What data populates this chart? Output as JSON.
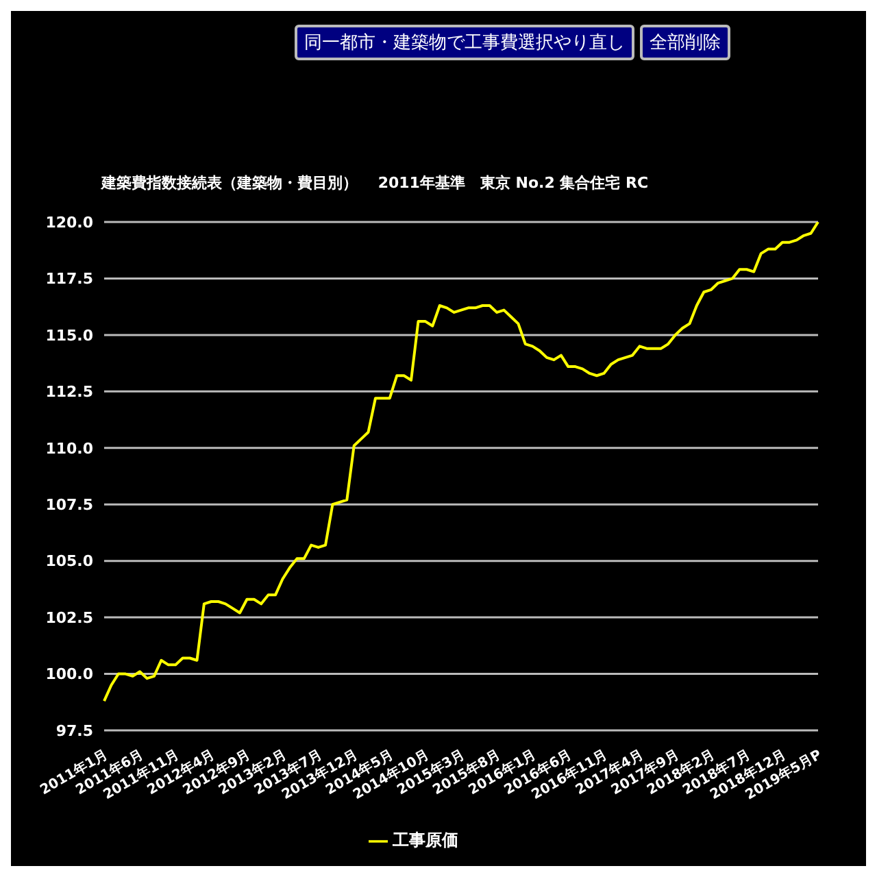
{
  "chart_data": {
    "type": "line",
    "title": "建築費指数接続表（建築物・費目別）　 2011年基準　東京 No.2 集合住宅 RC",
    "annotations": [
      "同一都市・建築物で工事費選択やり直し",
      "全部削除"
    ],
    "categories": [
      "2011年1月",
      null,
      null,
      null,
      null,
      "2011年6月",
      null,
      null,
      null,
      null,
      "2011年11月",
      null,
      null,
      null,
      null,
      "2012年4月",
      null,
      null,
      null,
      null,
      "2012年9月",
      null,
      null,
      null,
      null,
      "2013年2月",
      null,
      null,
      null,
      null,
      "2013年7月",
      null,
      null,
      null,
      null,
      "2013年12月",
      null,
      null,
      null,
      null,
      "2014年5月",
      null,
      null,
      null,
      null,
      "2014年10月",
      null,
      null,
      null,
      null,
      "2015年3月",
      null,
      null,
      null,
      null,
      "2015年8月",
      null,
      null,
      null,
      null,
      "2016年1月",
      null,
      null,
      null,
      null,
      "2016年6月",
      null,
      null,
      null,
      null,
      "2016年11月",
      null,
      null,
      null,
      null,
      "2017年4月",
      null,
      null,
      null,
      null,
      "2017年9月",
      null,
      null,
      null,
      null,
      "2018年2月",
      null,
      null,
      null,
      null,
      "2018年7月",
      null,
      null,
      null,
      null,
      "2018年12月",
      null,
      null,
      null,
      null,
      "2019年5月P"
    ],
    "series": [
      {
        "name": "工事原価",
        "color": "#ffff00",
        "values": [
          98.8,
          99.5,
          100.0,
          100.0,
          99.9,
          100.1,
          99.8,
          99.9,
          100.6,
          100.4,
          100.4,
          100.7,
          100.7,
          100.6,
          103.1,
          103.2,
          103.2,
          103.1,
          102.9,
          102.7,
          103.3,
          103.3,
          103.1,
          103.5,
          103.5,
          104.2,
          104.7,
          105.1,
          105.1,
          105.7,
          105.6,
          105.7,
          107.5,
          107.6,
          107.7,
          110.1,
          110.4,
          110.7,
          112.2,
          112.2,
          112.2,
          113.2,
          113.2,
          113.0,
          115.6,
          115.6,
          115.4,
          116.3,
          116.2,
          116.0,
          116.1,
          116.2,
          116.2,
          116.3,
          116.3,
          116.0,
          116.1,
          115.8,
          115.5,
          114.6,
          114.5,
          114.3,
          114.0,
          113.9,
          114.1,
          113.6,
          113.6,
          113.5,
          113.3,
          113.2,
          113.3,
          113.7,
          113.9,
          114.0,
          114.1,
          114.5,
          114.4,
          114.4,
          114.4,
          114.6,
          115.0,
          115.3,
          115.5,
          116.3,
          116.9,
          117.0,
          117.3,
          117.4,
          117.5,
          117.9,
          117.9,
          117.8,
          118.6,
          118.8,
          118.8,
          119.1,
          119.1,
          119.2,
          119.4,
          119.5,
          120.0
        ]
      }
    ],
    "ylim": [
      97.5,
      120
    ],
    "yticks": [
      {
        "value": 97.5,
        "label": "97.5"
      },
      {
        "value": 100,
        "label": "100.0"
      },
      {
        "value": 102.5,
        "label": "102.5"
      },
      {
        "value": 105,
        "label": "105.0"
      },
      {
        "value": 107.5,
        "label": "107.5"
      },
      {
        "value": 110,
        "label": "110.0"
      },
      {
        "value": 112.5,
        "label": "112.5"
      },
      {
        "value": 115,
        "label": "115.0"
      },
      {
        "value": 117.5,
        "label": "117.5"
      },
      {
        "value": 120,
        "label": "120.0"
      }
    ],
    "grid": "y",
    "legend": "bottom",
    "marker": "none",
    "line_style": "solid"
  }
}
